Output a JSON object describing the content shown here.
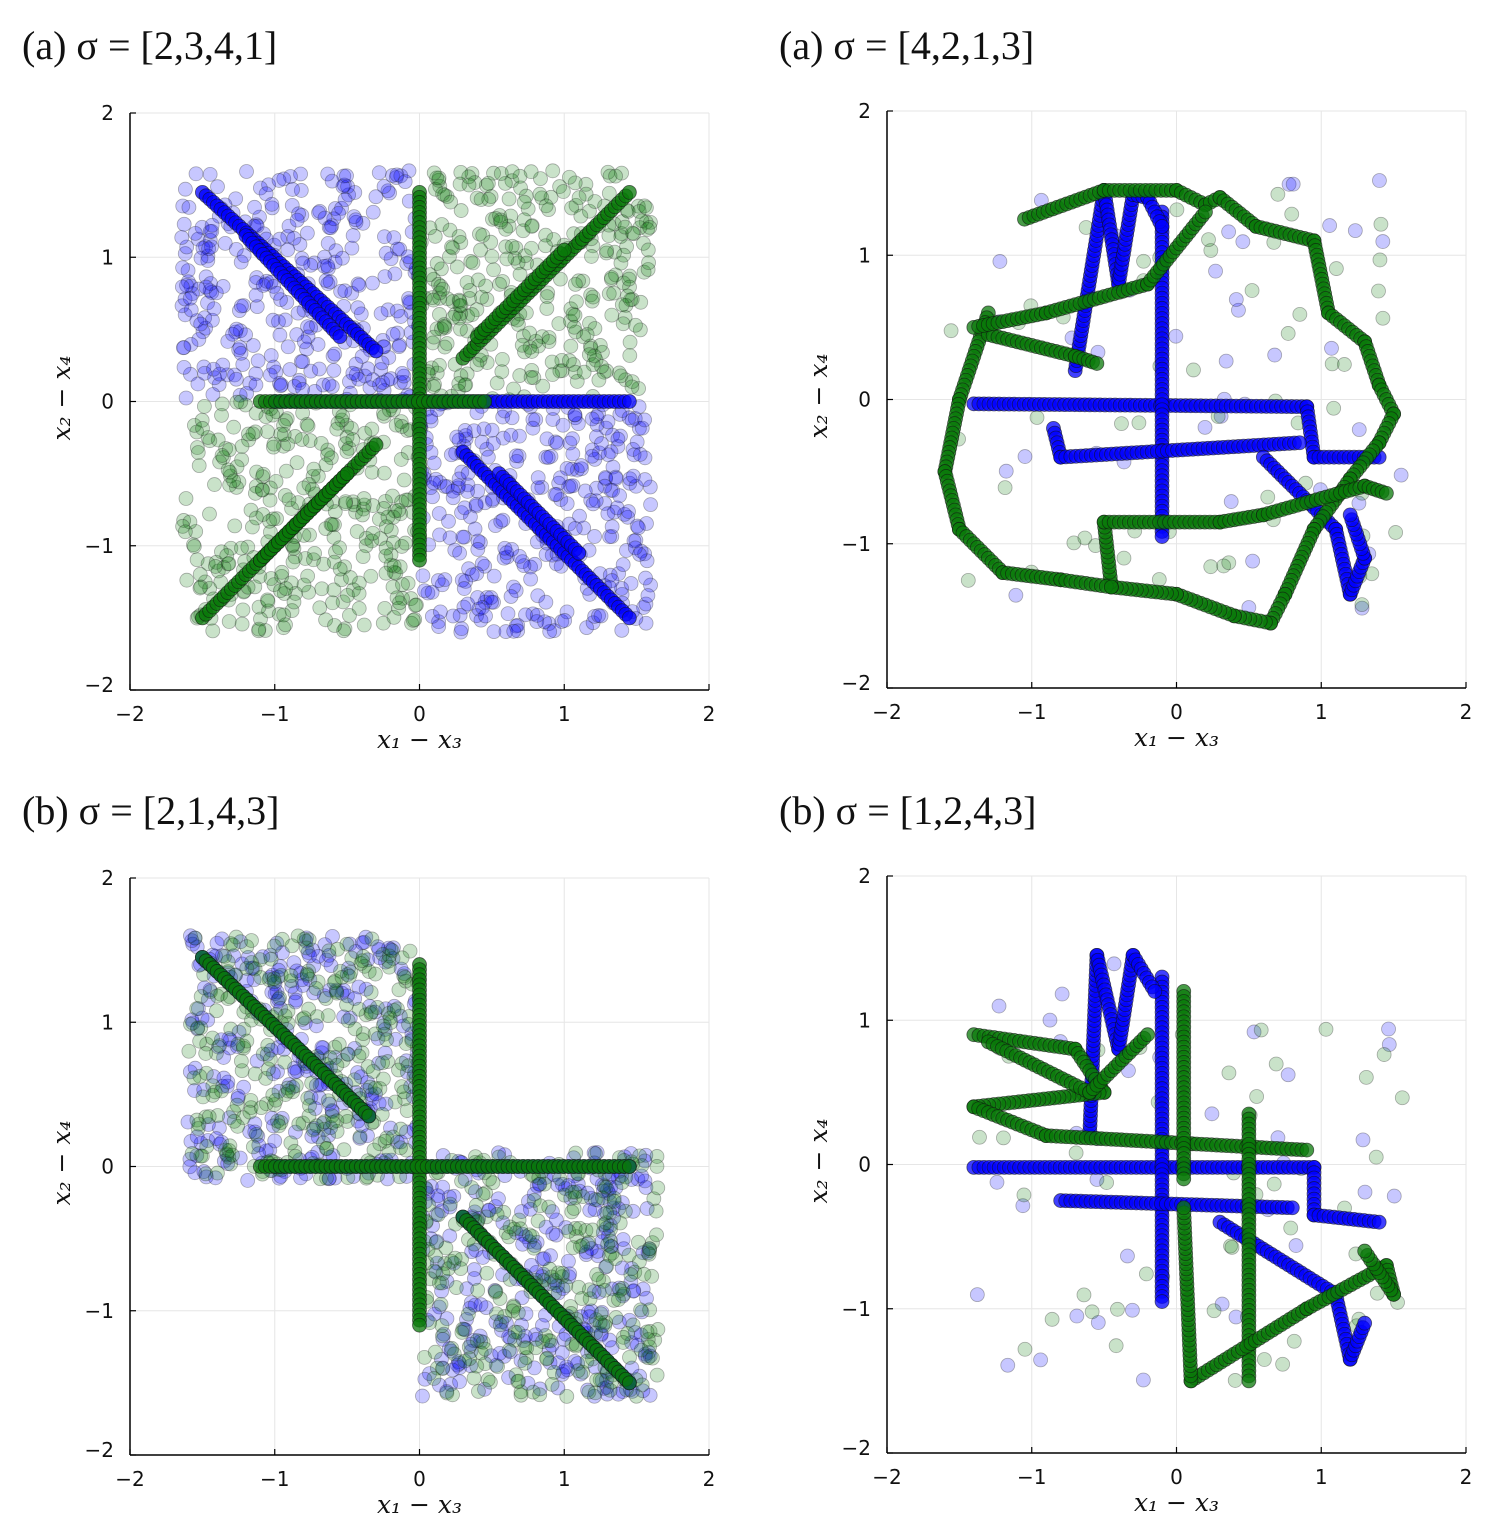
{
  "chart_data": [
    {
      "type": "scatter",
      "title": "(a) σ = [2,3,4,1]",
      "xlabel": "x₁ − x₃",
      "ylabel": "x₂ − x₄",
      "xlim": [
        -2,
        2
      ],
      "ylim": [
        -2,
        2
      ],
      "xticks": [
        -2,
        -1,
        0,
        1,
        2
      ],
      "yticks": [
        -2,
        -1,
        0,
        1,
        2
      ],
      "grid": true,
      "series": [
        {
          "name": "blue",
          "color": "#0000ff",
          "regions": [
            {
              "x": [
                -1.65,
                0
              ],
              "y": [
                0,
                1.6
              ],
              "n": 330
            },
            {
              "x": [
                0,
                1.6
              ],
              "y": [
                -1.6,
                0
              ],
              "n": 330
            }
          ],
          "paths": [
            [
              [
                -1.5,
                1.45
              ],
              [
                -0.3,
                0.35
              ]
            ],
            [
              [
                -1.2,
                1.15
              ],
              [
                -0.55,
                0.45
              ]
            ],
            [
              [
                -1.0,
                0
              ],
              [
                1.45,
                0
              ]
            ],
            [
              [
                0.3,
                -0.35
              ],
              [
                1.45,
                -1.5
              ]
            ],
            [
              [
                0.55,
                -0.5
              ],
              [
                1.1,
                -1.05
              ]
            ]
          ]
        },
        {
          "name": "green",
          "color": "#0a7a0a",
          "regions": [
            {
              "x": [
                0,
                1.6
              ],
              "y": [
                0,
                1.6
              ],
              "n": 330
            },
            {
              "x": [
                -1.65,
                0
              ],
              "y": [
                -1.6,
                0
              ],
              "n": 330
            }
          ],
          "paths": [
            [
              [
                0,
                1.45
              ],
              [
                0,
                -1.1
              ]
            ],
            [
              [
                -1.1,
                0
              ],
              [
                0.45,
                0
              ]
            ],
            [
              [
                0.3,
                0.3
              ],
              [
                1.45,
                1.45
              ]
            ],
            [
              [
                0.4,
                0.45
              ],
              [
                1.0,
                1.05
              ]
            ],
            [
              [
                -1.5,
                -1.5
              ],
              [
                -0.3,
                -0.3
              ]
            ],
            [
              [
                -1.1,
                -1.1
              ],
              [
                -0.5,
                -0.5
              ]
            ]
          ]
        }
      ]
    },
    {
      "type": "scatter",
      "title": "(a) σ = [4,2,1,3]",
      "xlabel": "x₁ − x₃",
      "ylabel": "x₂ − x₄",
      "xlim": [
        -2,
        2
      ],
      "ylim": [
        -2,
        2
      ],
      "xticks": [
        -2,
        -1,
        0,
        1,
        2
      ],
      "yticks": [
        -2,
        -1,
        0,
        1,
        2
      ],
      "grid": true,
      "series": [
        {
          "name": "blue",
          "color": "#0000ff",
          "regions": [
            {
              "x": [
                -1.5,
                1.6
              ],
              "y": [
                -1.5,
                1.6
              ],
              "n": 40
            }
          ],
          "paths": [
            [
              [
                -1.4,
                -0.03
              ],
              [
                0.9,
                -0.05
              ],
              [
                0.95,
                -0.4
              ],
              [
                1.4,
                -0.4
              ]
            ],
            [
              [
                -0.1,
                1.3
              ],
              [
                -0.1,
                -0.95
              ]
            ],
            [
              [
                -0.7,
                0.2
              ],
              [
                -0.5,
                1.45
              ],
              [
                -0.4,
                0.8
              ],
              [
                -0.3,
                1.42
              ],
              [
                -0.2,
                1.4
              ],
              [
                -0.1,
                1.2
              ]
            ],
            [
              [
                -0.85,
                -0.2
              ],
              [
                -0.8,
                -0.4
              ],
              [
                0.85,
                -0.3
              ]
            ],
            [
              [
                0.6,
                -0.4
              ],
              [
                1.1,
                -0.9
              ],
              [
                1.2,
                -1.35
              ],
              [
                1.3,
                -1.1
              ],
              [
                1.2,
                -0.8
              ]
            ]
          ]
        },
        {
          "name": "green",
          "color": "#0a7a0a",
          "regions": [
            {
              "x": [
                -1.6,
                1.6
              ],
              "y": [
                -1.6,
                1.5
              ],
              "n": 60
            }
          ],
          "paths": [
            [
              [
                -1.05,
                1.25
              ],
              [
                -0.5,
                1.45
              ],
              [
                0,
                1.45
              ],
              [
                0.2,
                1.35
              ],
              [
                0.3,
                1.4
              ],
              [
                0.55,
                1.2
              ],
              [
                0.95,
                1.1
              ],
              [
                1.05,
                0.6
              ],
              [
                1.3,
                0.4
              ],
              [
                1.4,
                0.1
              ],
              [
                1.5,
                -0.1
              ],
              [
                1.4,
                -0.3
              ],
              [
                1.2,
                -0.55
              ],
              [
                0.95,
                -0.9
              ],
              [
                0.75,
                -1.35
              ],
              [
                0.65,
                -1.55
              ],
              [
                0.4,
                -1.5
              ],
              [
                0.0,
                -1.35
              ],
              [
                -0.45,
                -1.3
              ],
              [
                -0.5,
                -0.85
              ],
              [
                0.3,
                -0.85
              ],
              [
                0.6,
                -0.8
              ],
              [
                1.3,
                -0.6
              ],
              [
                1.45,
                -0.65
              ]
            ],
            [
              [
                -1.3,
                0.6
              ],
              [
                -1.5,
                0.0
              ],
              [
                -1.6,
                -0.5
              ],
              [
                -1.5,
                -0.9
              ],
              [
                -1.2,
                -1.2
              ],
              [
                -0.8,
                -1.25
              ],
              [
                -0.45,
                -1.3
              ]
            ],
            [
              [
                -1.3,
                0.45
              ],
              [
                -0.7,
                0.3
              ],
              [
                -0.55,
                0.25
              ]
            ],
            [
              [
                -1.4,
                0.5
              ],
              [
                -0.9,
                0.6
              ],
              [
                -0.2,
                0.8
              ],
              [
                0.2,
                1.3
              ]
            ]
          ]
        }
      ]
    },
    {
      "type": "scatter",
      "title": "(b) σ = [2,1,4,3]",
      "xlabel": "x₁ − x₃",
      "ylabel": "x₂ − x₄",
      "xlim": [
        -2,
        2
      ],
      "ylim": [
        -2,
        2
      ],
      "xticks": [
        -2,
        -1,
        0,
        1,
        2
      ],
      "yticks": [
        -2,
        -1,
        0,
        1,
        2
      ],
      "grid": true,
      "series": [
        {
          "name": "blue",
          "color": "#0000ff",
          "regions": [
            {
              "x": [
                -1.6,
                0
              ],
              "y": [
                -0.1,
                1.6
              ],
              "n": 300
            },
            {
              "x": [
                0,
                1.6
              ],
              "y": [
                -1.6,
                0.1
              ],
              "n": 300
            }
          ],
          "paths": [
            [
              [
                -1.5,
                1.45
              ],
              [
                -0.35,
                0.35
              ]
            ],
            [
              [
                -1.0,
                0
              ],
              [
                1.45,
                0
              ]
            ],
            [
              [
                0.3,
                -0.35
              ],
              [
                1.45,
                -1.5
              ]
            ]
          ]
        },
        {
          "name": "green",
          "color": "#0a7a0a",
          "regions": [
            {
              "x": [
                -1.6,
                0
              ],
              "y": [
                -0.1,
                1.6
              ],
              "n": 300
            },
            {
              "x": [
                0,
                1.65
              ],
              "y": [
                -1.6,
                0.1
              ],
              "n": 300
            }
          ],
          "paths": [
            [
              [
                -1.5,
                1.45
              ],
              [
                -0.35,
                0.35
              ]
            ],
            [
              [
                0,
                1.4
              ],
              [
                0,
                -1.1
              ]
            ],
            [
              [
                -1.1,
                0
              ],
              [
                1.45,
                0
              ]
            ],
            [
              [
                0.3,
                -0.35
              ],
              [
                1.45,
                -1.5
              ]
            ]
          ]
        }
      ]
    },
    {
      "type": "scatter",
      "title": "(b) σ = [1,2,4,3]",
      "xlabel": "x₁ − x₃",
      "ylabel": "x₂ − x₄",
      "xlim": [
        -2,
        2
      ],
      "ylim": [
        -2,
        2
      ],
      "xticks": [
        -2,
        -1,
        0,
        1,
        2
      ],
      "yticks": [
        -2,
        -1,
        0,
        1,
        2
      ],
      "grid": true,
      "series": [
        {
          "name": "blue",
          "color": "#0000ff",
          "regions": [
            {
              "x": [
                -1.4,
                1.6
              ],
              "y": [
                -1.5,
                1.6
              ],
              "n": 35
            }
          ],
          "paths": [
            [
              [
                -1.4,
                -0.02
              ],
              [
                0.95,
                -0.02
              ],
              [
                0.95,
                -0.35
              ],
              [
                1.4,
                -0.4
              ]
            ],
            [
              [
                -0.1,
                1.3
              ],
              [
                -0.1,
                -0.95
              ]
            ],
            [
              [
                -0.6,
                0.2
              ],
              [
                -0.55,
                1.45
              ],
              [
                -0.4,
                0.8
              ],
              [
                -0.3,
                1.45
              ],
              [
                -0.15,
                1.2
              ]
            ],
            [
              [
                -0.8,
                -0.25
              ],
              [
                0.8,
                -0.3
              ]
            ],
            [
              [
                0.3,
                -0.4
              ],
              [
                1.1,
                -0.9
              ],
              [
                1.2,
                -1.35
              ],
              [
                1.3,
                -1.1
              ]
            ]
          ]
        },
        {
          "name": "green",
          "color": "#0a7a0a",
          "regions": [
            {
              "x": [
                -1.4,
                1.6
              ],
              "y": [
                -1.5,
                1.0
              ],
              "n": 50
            }
          ],
          "paths": [
            [
              [
                -1.4,
                0.9
              ],
              [
                -0.7,
                0.8
              ],
              [
                -0.5,
                0.5
              ],
              [
                -1.4,
                0.4
              ],
              [
                -0.9,
                0.2
              ],
              [
                0.9,
                0.1
              ]
            ],
            [
              [
                0.05,
                1.2
              ],
              [
                0.05,
                -0.1
              ]
            ],
            [
              [
                0.5,
                0.35
              ],
              [
                0.5,
                -1.5
              ]
            ],
            [
              [
                0.1,
                -1.5
              ],
              [
                0.9,
                -1.0
              ],
              [
                1.45,
                -0.7
              ],
              [
                1.5,
                -0.9
              ],
              [
                1.3,
                -0.6
              ]
            ],
            [
              [
                0.1,
                -1.5
              ],
              [
                0.05,
                -0.3
              ]
            ],
            [
              [
                -1.3,
                0.85
              ],
              [
                -0.6,
                0.5
              ],
              [
                -0.2,
                0.9
              ]
            ]
          ]
        }
      ]
    }
  ]
}
